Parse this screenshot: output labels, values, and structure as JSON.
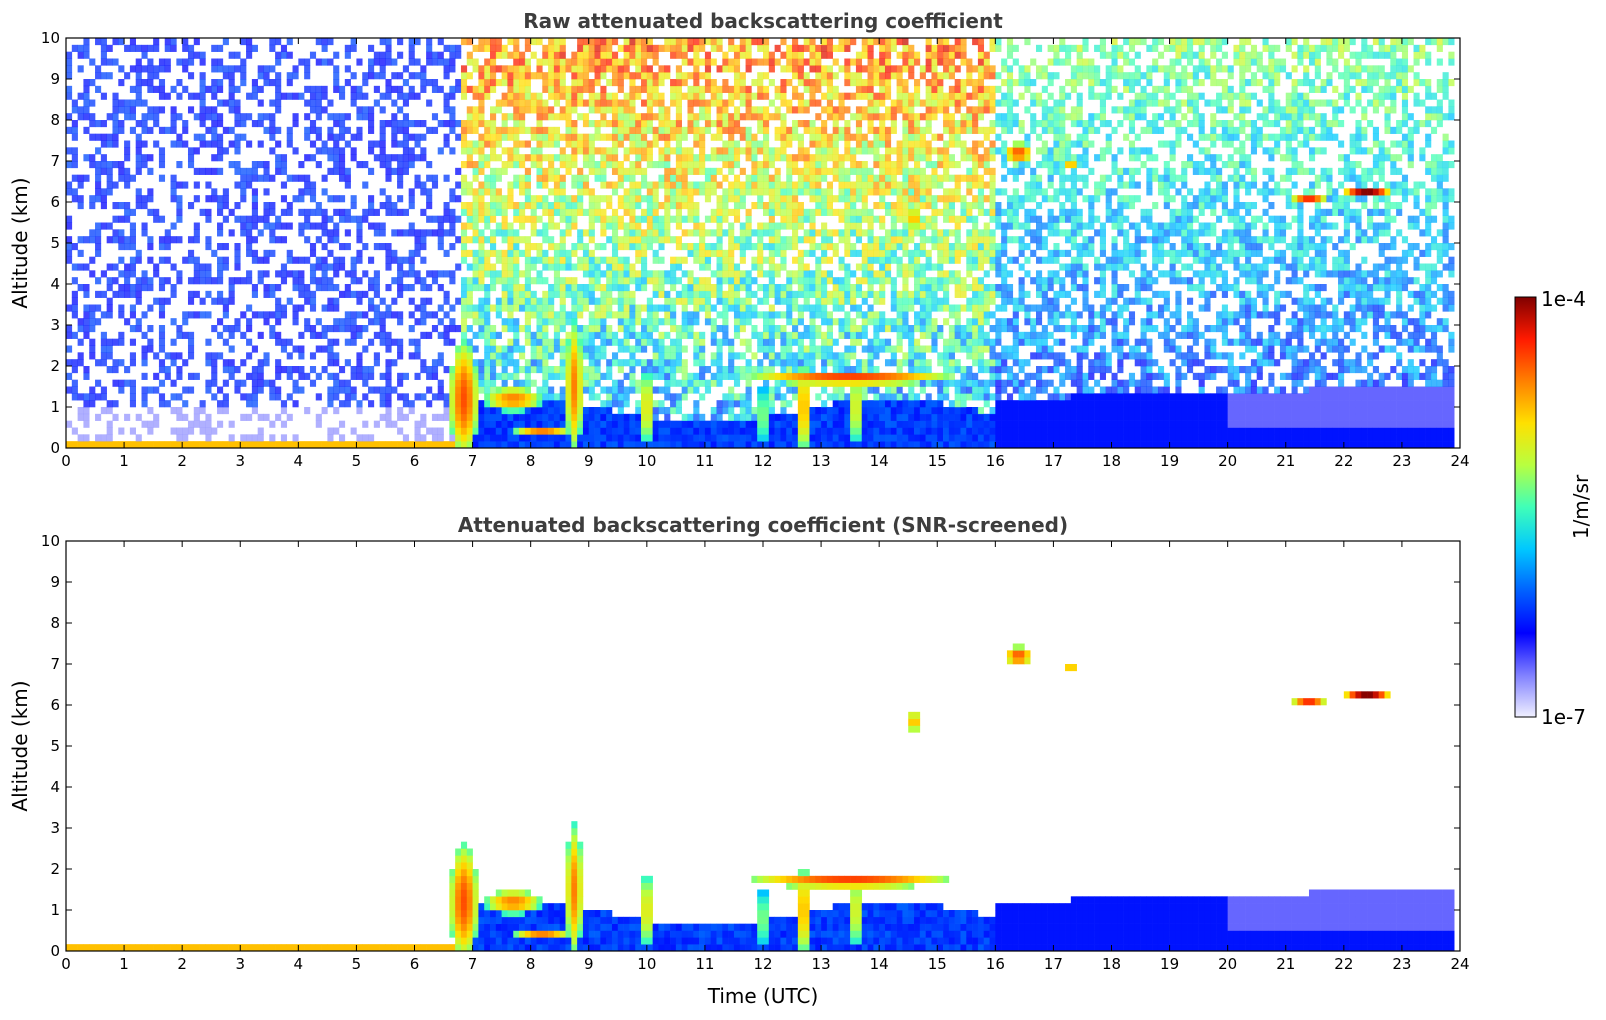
{
  "chart_data": [
    {
      "type": "heatmap",
      "title": "Raw attenuated backscattering coefficient",
      "xlabel": "",
      "ylabel": "Altitude (km)",
      "xlim": [
        0,
        24
      ],
      "ylim": [
        0,
        10
      ],
      "xticks": [
        "0",
        "1",
        "2",
        "3",
        "4",
        "5",
        "6",
        "7",
        "8",
        "9",
        "10",
        "11",
        "12",
        "13",
        "14",
        "15",
        "16",
        "17",
        "18",
        "19",
        "20",
        "21",
        "22",
        "23",
        "24"
      ],
      "yticks": [
        "0",
        "1",
        "2",
        "3",
        "4",
        "5",
        "6",
        "7",
        "8",
        "9",
        "10"
      ],
      "screened": false
    },
    {
      "type": "heatmap",
      "title": "Attenuated backscattering coefficient (SNR-screened)",
      "xlabel": "Time (UTC)",
      "ylabel": "Altitude (km)",
      "xlim": [
        0,
        24
      ],
      "ylim": [
        0,
        10
      ],
      "xticks": [
        "0",
        "1",
        "2",
        "3",
        "4",
        "5",
        "6",
        "7",
        "8",
        "9",
        "10",
        "11",
        "12",
        "13",
        "14",
        "15",
        "16",
        "17",
        "18",
        "19",
        "20",
        "21",
        "22",
        "23",
        "24"
      ],
      "yticks": [
        "0",
        "1",
        "2",
        "3",
        "4",
        "5",
        "6",
        "7",
        "8",
        "9",
        "10"
      ],
      "screened": true
    }
  ],
  "colorbar": {
    "label": "1/m/sr",
    "max_label": "1e-4",
    "min_label": "1e-7",
    "scale": "log",
    "range": [
      1e-07,
      0.0001
    ],
    "colormap": [
      "#f0f0ff",
      "#8080ff",
      "#0000ff",
      "#0060ff",
      "#00c8ff",
      "#40ffb8",
      "#b8ff40",
      "#ffe000",
      "#ff8000",
      "#ff1a00",
      "#800000"
    ]
  }
}
